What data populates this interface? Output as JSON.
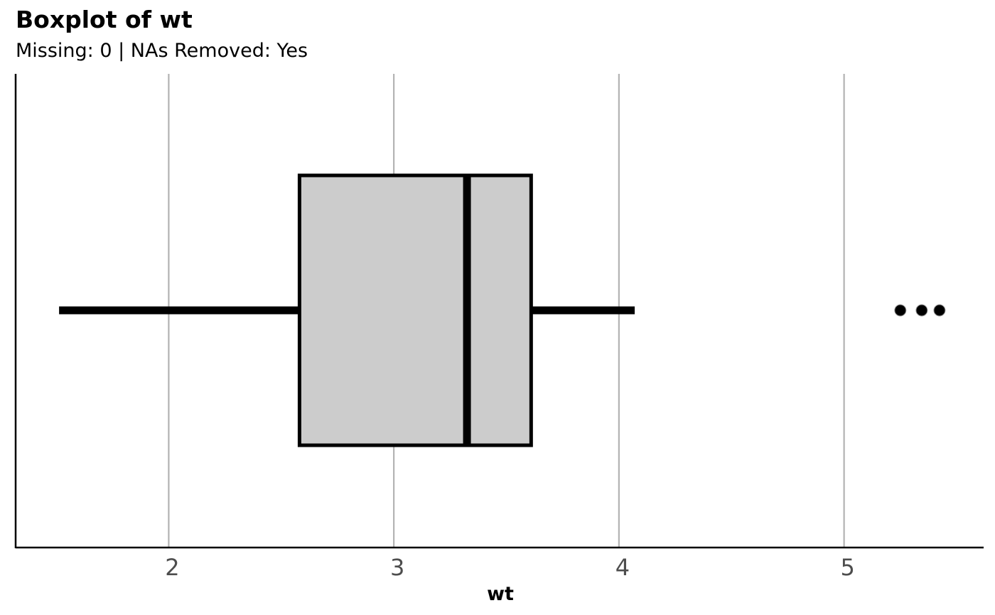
{
  "chart_data": {
    "type": "boxplot",
    "orientation": "horizontal",
    "title": "Boxplot of wt",
    "subtitle": "Missing: 0 | NAs Removed: Yes",
    "xlabel": "wt",
    "ylabel": "",
    "xlim": [
      1.32,
      5.62
    ],
    "x_ticks": [
      2,
      3,
      4,
      5
    ],
    "x_tick_labels": [
      "2",
      "3",
      "4",
      "5"
    ],
    "grid": {
      "vertical_major": true,
      "horizontal": false
    },
    "boxes": [
      {
        "min": 1.513,
        "q1": 2.581,
        "median": 3.325,
        "q3": 3.61,
        "max": 4.07,
        "outliers": [
          5.25,
          5.345,
          5.424
        ]
      }
    ],
    "colors": {
      "box_fill": "#cccccc",
      "box_stroke": "#000000",
      "grid": "#b3b3b3",
      "axis": "#000000",
      "tick_label": "#4d4d4d",
      "outlier": "#000000"
    }
  }
}
